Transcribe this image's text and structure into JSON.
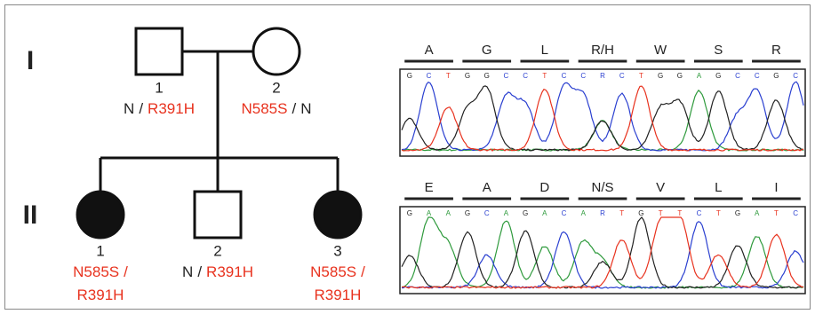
{
  "generations": [
    {
      "label": "I"
    },
    {
      "label": "II"
    }
  ],
  "individuals": [
    {
      "number": "1",
      "shape": "square",
      "affected": false,
      "genotype": [
        [
          {
            "text": "N",
            "color": "#222222"
          },
          {
            "text": "/",
            "color": "#222222"
          },
          {
            "text": "R391H",
            "color": "#e8321e"
          }
        ]
      ]
    },
    {
      "number": "2",
      "shape": "circle",
      "affected": false,
      "genotype": [
        [
          {
            "text": "N585S",
            "color": "#e8321e"
          },
          {
            "text": "/",
            "color": "#222222"
          },
          {
            "text": "N",
            "color": "#222222"
          }
        ]
      ]
    },
    {
      "number": "1",
      "shape": "circle",
      "affected": true,
      "genotype": [
        [
          {
            "text": "N585S",
            "color": "#e8321e"
          },
          {
            "text": "/",
            "color": "#e8321e"
          }
        ],
        [
          {
            "text": "R391H",
            "color": "#e8321e"
          }
        ]
      ]
    },
    {
      "number": "2",
      "shape": "square",
      "affected": false,
      "genotype": [
        [
          {
            "text": "N",
            "color": "#222222"
          },
          {
            "text": "/",
            "color": "#222222"
          },
          {
            "text": "R391H",
            "color": "#e8321e"
          }
        ]
      ]
    },
    {
      "number": "3",
      "shape": "circle",
      "affected": true,
      "genotype": [
        [
          {
            "text": "N585S",
            "color": "#e8321e"
          },
          {
            "text": "/",
            "color": "#e8321e"
          }
        ],
        [
          {
            "text": "R391H",
            "color": "#e8321e"
          }
        ]
      ]
    }
  ],
  "chromatograms": [
    {
      "codons": [
        "A",
        "G",
        "L",
        "R/H",
        "W",
        "S",
        "R"
      ],
      "bases": [
        "G",
        "C",
        "T",
        "G",
        "G",
        "C",
        "C",
        "T",
        "C",
        "C",
        "R",
        "C",
        "T",
        "G",
        "G",
        "A",
        "G",
        "C",
        "C",
        "G",
        "C"
      ]
    },
    {
      "codons": [
        "E",
        "A",
        "D",
        "N/S",
        "V",
        "L",
        "I"
      ],
      "bases": [
        "G",
        "A",
        "A",
        "G",
        "C",
        "A",
        "G",
        "A",
        "C",
        "A",
        "R",
        "T",
        "G",
        "T",
        "T",
        "C",
        "T",
        "G",
        "A",
        "T",
        "C"
      ]
    }
  ]
}
